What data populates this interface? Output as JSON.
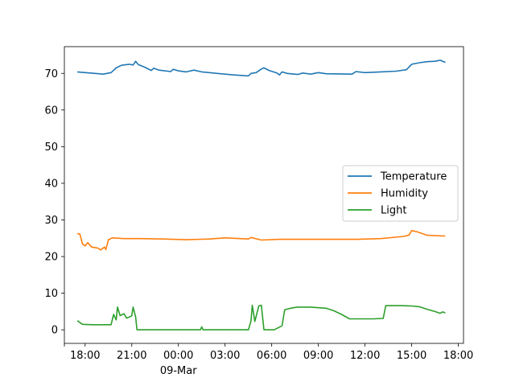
{
  "chart_data": {
    "type": "line",
    "grid": false,
    "legend_position": "center-right",
    "x_axis": {
      "type": "time",
      "range": [
        "2018-03-08 16:40",
        "2018-03-09 18:20"
      ],
      "ticks": [
        {
          "time": "2018-03-08 18:00",
          "label": "18:00",
          "sublabel": ""
        },
        {
          "time": "2018-03-08 21:00",
          "label": "21:00",
          "sublabel": ""
        },
        {
          "time": "2018-03-09 00:00",
          "label": "00:00",
          "sublabel": "09-Mar"
        },
        {
          "time": "2018-03-09 03:00",
          "label": "03:00",
          "sublabel": ""
        },
        {
          "time": "2018-03-09 06:00",
          "label": "06:00",
          "sublabel": ""
        },
        {
          "time": "2018-03-09 09:00",
          "label": "09:00",
          "sublabel": ""
        },
        {
          "time": "2018-03-09 12:00",
          "label": "12:00",
          "sublabel": ""
        },
        {
          "time": "2018-03-09 15:00",
          "label": "15:00",
          "sublabel": ""
        },
        {
          "time": "2018-03-09 18:00",
          "label": "18:00",
          "sublabel": ""
        }
      ]
    },
    "y_axis": {
      "range": [
        -3.7,
        77.3
      ],
      "ticks": [
        0,
        10,
        20,
        30,
        40,
        50,
        60,
        70
      ]
    },
    "series": [
      {
        "name": "Temperature",
        "color": "#1f77b4",
        "points": [
          [
            "2018-03-08 17:30",
            70.4
          ],
          [
            "2018-03-08 18:00",
            70.2
          ],
          [
            "2018-03-08 18:40",
            70.0
          ],
          [
            "2018-03-08 19:10",
            69.8
          ],
          [
            "2018-03-08 19:40",
            70.2
          ],
          [
            "2018-03-08 20:00",
            71.5
          ],
          [
            "2018-03-08 20:20",
            72.2
          ],
          [
            "2018-03-08 20:50",
            72.5
          ],
          [
            "2018-03-08 21:05",
            72.3
          ],
          [
            "2018-03-08 21:15",
            73.3
          ],
          [
            "2018-03-08 21:25",
            72.4
          ],
          [
            "2018-03-08 21:50",
            71.7
          ],
          [
            "2018-03-08 22:15",
            70.8
          ],
          [
            "2018-03-08 22:25",
            71.4
          ],
          [
            "2018-03-08 22:45",
            70.9
          ],
          [
            "2018-03-08 23:30",
            70.5
          ],
          [
            "2018-03-08 23:40",
            71.1
          ],
          [
            "2018-03-09 00:00",
            70.7
          ],
          [
            "2018-03-09 00:30",
            70.4
          ],
          [
            "2018-03-09 01:00",
            70.9
          ],
          [
            "2018-03-09 01:30",
            70.4
          ],
          [
            "2018-03-09 02:30",
            70.0
          ],
          [
            "2018-03-09 03:30",
            69.6
          ],
          [
            "2018-03-09 04:30",
            69.3
          ],
          [
            "2018-03-09 04:40",
            70.0
          ],
          [
            "2018-03-09 05:00",
            70.2
          ],
          [
            "2018-03-09 05:20",
            71.2
          ],
          [
            "2018-03-09 05:30",
            71.5
          ],
          [
            "2018-03-09 05:50",
            70.8
          ],
          [
            "2018-03-09 06:20",
            70.1
          ],
          [
            "2018-03-09 06:30",
            69.6
          ],
          [
            "2018-03-09 06:40",
            70.4
          ],
          [
            "2018-03-09 07:00",
            70.0
          ],
          [
            "2018-03-09 07:40",
            69.7
          ],
          [
            "2018-03-09 08:00",
            70.1
          ],
          [
            "2018-03-09 08:30",
            69.8
          ],
          [
            "2018-03-09 09:00",
            70.2
          ],
          [
            "2018-03-09 09:30",
            69.9
          ],
          [
            "2018-03-09 11:10",
            69.8
          ],
          [
            "2018-03-09 11:25",
            70.5
          ],
          [
            "2018-03-09 12:00",
            70.2
          ],
          [
            "2018-03-09 13:00",
            70.4
          ],
          [
            "2018-03-09 14:00",
            70.6
          ],
          [
            "2018-03-09 14:40",
            71.0
          ],
          [
            "2018-03-09 15:00",
            72.5
          ],
          [
            "2018-03-09 15:30",
            72.9
          ],
          [
            "2018-03-09 16:00",
            73.2
          ],
          [
            "2018-03-09 16:30",
            73.3
          ],
          [
            "2018-03-09 16:50",
            73.6
          ],
          [
            "2018-03-09 17:10",
            73.0
          ]
        ]
      },
      {
        "name": "Humidity",
        "color": "#ff7f0e",
        "points": [
          [
            "2018-03-08 17:30",
            26.3
          ],
          [
            "2018-03-08 17:40",
            26.1
          ],
          [
            "2018-03-08 17:50",
            23.4
          ],
          [
            "2018-03-08 18:00",
            22.9
          ],
          [
            "2018-03-08 18:10",
            23.8
          ],
          [
            "2018-03-08 18:25",
            22.6
          ],
          [
            "2018-03-08 18:50",
            22.3
          ],
          [
            "2018-03-08 19:00",
            21.8
          ],
          [
            "2018-03-08 19:15",
            22.6
          ],
          [
            "2018-03-08 19:20",
            21.9
          ],
          [
            "2018-03-08 19:30",
            24.6
          ],
          [
            "2018-03-08 19:45",
            25.1
          ],
          [
            "2018-03-08 20:30",
            24.9
          ],
          [
            "2018-03-08 21:30",
            24.9
          ],
          [
            "2018-03-08 23:00",
            24.8
          ],
          [
            "2018-03-09 00:30",
            24.6
          ],
          [
            "2018-03-09 02:00",
            24.8
          ],
          [
            "2018-03-09 03:00",
            25.1
          ],
          [
            "2018-03-09 04:30",
            24.8
          ],
          [
            "2018-03-09 04:40",
            25.2
          ],
          [
            "2018-03-09 05:20",
            24.5
          ],
          [
            "2018-03-09 06:30",
            24.7
          ],
          [
            "2018-03-09 09:00",
            24.7
          ],
          [
            "2018-03-09 11:30",
            24.7
          ],
          [
            "2018-03-09 13:00",
            24.9
          ],
          [
            "2018-03-09 14:30",
            25.5
          ],
          [
            "2018-03-09 14:50",
            25.9
          ],
          [
            "2018-03-09 15:00",
            27.1
          ],
          [
            "2018-03-09 15:20",
            26.8
          ],
          [
            "2018-03-09 16:00",
            25.8
          ],
          [
            "2018-03-09 17:10",
            25.6
          ]
        ]
      },
      {
        "name": "Light",
        "color": "#2ca02c",
        "points": [
          [
            "2018-03-08 17:30",
            2.5
          ],
          [
            "2018-03-08 17:50",
            1.5
          ],
          [
            "2018-03-08 18:30",
            1.4
          ],
          [
            "2018-03-08 19:40",
            1.4
          ],
          [
            "2018-03-08 19:50",
            4.2
          ],
          [
            "2018-03-08 20:00",
            2.7
          ],
          [
            "2018-03-08 20:05",
            6.2
          ],
          [
            "2018-03-08 20:15",
            3.9
          ],
          [
            "2018-03-08 20:30",
            4.4
          ],
          [
            "2018-03-08 20:40",
            3.2
          ],
          [
            "2018-03-08 21:00",
            3.8
          ],
          [
            "2018-03-08 21:05",
            6.2
          ],
          [
            "2018-03-08 21:15",
            3.5
          ],
          [
            "2018-03-08 21:20",
            0.0
          ],
          [
            "2018-03-09 01:25",
            0.0
          ],
          [
            "2018-03-09 01:30",
            0.8
          ],
          [
            "2018-03-09 01:35",
            0.0
          ],
          [
            "2018-03-09 04:30",
            0.0
          ],
          [
            "2018-03-09 04:40",
            2.4
          ],
          [
            "2018-03-09 04:45",
            6.7
          ],
          [
            "2018-03-09 04:55",
            2.3
          ],
          [
            "2018-03-09 05:10",
            6.5
          ],
          [
            "2018-03-09 05:20",
            6.7
          ],
          [
            "2018-03-09 05:30",
            0.0
          ],
          [
            "2018-03-09 06:10",
            0.0
          ],
          [
            "2018-03-09 06:40",
            1.1
          ],
          [
            "2018-03-09 06:50",
            5.5
          ],
          [
            "2018-03-09 07:20",
            6.0
          ],
          [
            "2018-03-09 07:40",
            6.2
          ],
          [
            "2018-03-09 08:30",
            6.2
          ],
          [
            "2018-03-09 09:30",
            5.9
          ],
          [
            "2018-03-09 10:00",
            5.2
          ],
          [
            "2018-03-09 10:30",
            4.2
          ],
          [
            "2018-03-09 11:00",
            3.0
          ],
          [
            "2018-03-09 12:30",
            3.0
          ],
          [
            "2018-03-09 13:10",
            3.1
          ],
          [
            "2018-03-09 13:20",
            6.6
          ],
          [
            "2018-03-09 14:20",
            6.6
          ],
          [
            "2018-03-09 15:00",
            6.5
          ],
          [
            "2018-03-09 15:30",
            6.3
          ],
          [
            "2018-03-09 16:00",
            5.6
          ],
          [
            "2018-03-09 16:30",
            5.0
          ],
          [
            "2018-03-09 16:50",
            4.5
          ],
          [
            "2018-03-09 17:00",
            4.9
          ],
          [
            "2018-03-09 17:10",
            4.6
          ]
        ]
      }
    ]
  }
}
